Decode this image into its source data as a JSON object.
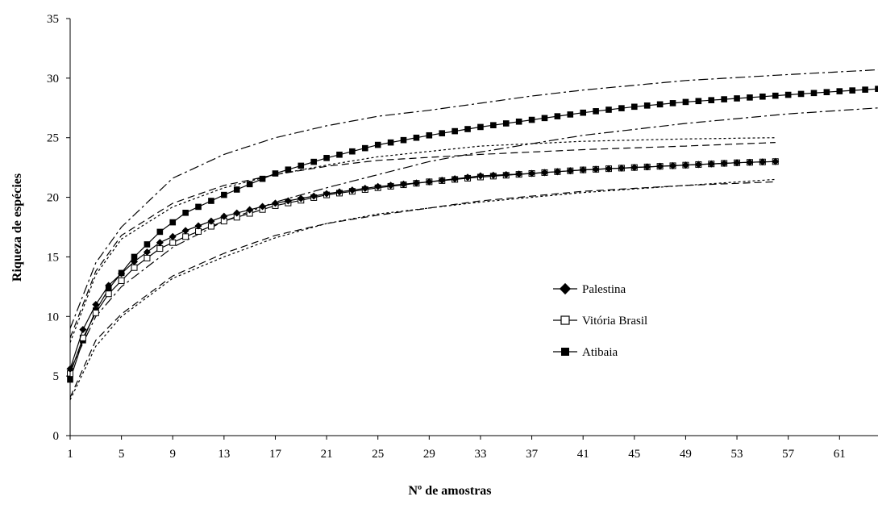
{
  "chart_data": {
    "type": "line",
    "xlabel": "Nº de amostras",
    "ylabel": "Riqueza de espécies",
    "xlim": [
      1,
      64
    ],
    "ylim": [
      0,
      35
    ],
    "x_ticks": [
      "1",
      "5",
      "9",
      "13",
      "17",
      "21",
      "25",
      "29",
      "33",
      "37",
      "41",
      "45",
      "49",
      "53",
      "57",
      "61"
    ],
    "y_ticks": [
      "0",
      "5",
      "10",
      "15",
      "20",
      "25",
      "30",
      "35"
    ],
    "grid": false,
    "legend_position": "right",
    "series": [
      {
        "name": "Palestina",
        "marker": "filled-diamond",
        "color": "#000000",
        "n": 56,
        "points": [
          [
            1,
            5.6
          ],
          [
            2,
            8.9
          ],
          [
            3,
            11.0
          ],
          [
            4,
            12.6
          ],
          [
            6,
            14.6
          ],
          [
            8,
            16.2
          ],
          [
            10,
            17.2
          ],
          [
            13,
            18.4
          ],
          [
            17,
            19.5
          ],
          [
            21,
            20.3
          ],
          [
            25,
            20.9
          ],
          [
            29,
            21.3
          ],
          [
            33,
            21.8
          ],
          [
            37,
            22.0
          ],
          [
            41,
            22.3
          ],
          [
            45,
            22.5
          ],
          [
            49,
            22.7
          ],
          [
            53,
            22.9
          ],
          [
            56,
            23.0
          ]
        ],
        "ci_upper": [
          [
            1,
            8.2
          ],
          [
            3,
            13.8
          ],
          [
            5,
            16.8
          ],
          [
            9,
            19.5
          ],
          [
            13,
            21.0
          ],
          [
            17,
            21.9
          ],
          [
            21,
            22.6
          ],
          [
            25,
            23.1
          ],
          [
            33,
            23.6
          ],
          [
            41,
            24.0
          ],
          [
            49,
            24.3
          ],
          [
            56,
            24.6
          ]
        ],
        "ci_lower": [
          [
            1,
            3.2
          ],
          [
            3,
            8.0
          ],
          [
            5,
            10.2
          ],
          [
            9,
            13.4
          ],
          [
            13,
            15.3
          ],
          [
            17,
            16.8
          ],
          [
            21,
            17.8
          ],
          [
            25,
            18.5
          ],
          [
            33,
            19.7
          ],
          [
            41,
            20.5
          ],
          [
            49,
            21.0
          ],
          [
            56,
            21.3
          ]
        ]
      },
      {
        "name": "Vitória Brasil",
        "marker": "open-square",
        "color": "#000000",
        "n": 56,
        "points": [
          [
            1,
            5.2
          ],
          [
            2,
            8.2
          ],
          [
            3,
            10.3
          ],
          [
            4,
            11.9
          ],
          [
            6,
            14.1
          ],
          [
            8,
            15.7
          ],
          [
            10,
            16.7
          ],
          [
            13,
            18.0
          ],
          [
            17,
            19.3
          ],
          [
            21,
            20.2
          ],
          [
            25,
            20.8
          ],
          [
            29,
            21.3
          ],
          [
            33,
            21.7
          ],
          [
            37,
            22.0
          ],
          [
            41,
            22.3
          ],
          [
            45,
            22.5
          ],
          [
            49,
            22.7
          ],
          [
            53,
            22.9
          ],
          [
            56,
            23.0
          ]
        ],
        "ci_upper": [
          [
            1,
            7.8
          ],
          [
            3,
            13.5
          ],
          [
            5,
            16.5
          ],
          [
            9,
            19.2
          ],
          [
            13,
            20.8
          ],
          [
            17,
            21.9
          ],
          [
            21,
            22.7
          ],
          [
            25,
            23.4
          ],
          [
            33,
            24.3
          ],
          [
            41,
            24.7
          ],
          [
            49,
            24.9
          ],
          [
            56,
            25.0
          ]
        ],
        "ci_lower": [
          [
            1,
            3.0
          ],
          [
            3,
            7.5
          ],
          [
            5,
            10.0
          ],
          [
            9,
            13.2
          ],
          [
            13,
            15.0
          ],
          [
            17,
            16.6
          ],
          [
            21,
            17.8
          ],
          [
            25,
            18.6
          ],
          [
            33,
            19.6
          ],
          [
            41,
            20.4
          ],
          [
            49,
            21.0
          ],
          [
            56,
            21.5
          ]
        ]
      },
      {
        "name": "Atibaia",
        "marker": "filled-square",
        "color": "#000000",
        "n": 64,
        "points": [
          [
            1,
            4.7
          ],
          [
            2,
            8.0
          ],
          [
            3,
            10.5
          ],
          [
            4,
            12.3
          ],
          [
            6,
            15.0
          ],
          [
            8,
            17.1
          ],
          [
            10,
            18.7
          ],
          [
            13,
            20.2
          ],
          [
            17,
            22.0
          ],
          [
            21,
            23.3
          ],
          [
            25,
            24.4
          ],
          [
            29,
            25.2
          ],
          [
            33,
            25.9
          ],
          [
            37,
            26.5
          ],
          [
            41,
            27.1
          ],
          [
            45,
            27.6
          ],
          [
            49,
            28.0
          ],
          [
            53,
            28.3
          ],
          [
            57,
            28.6
          ],
          [
            61,
            28.9
          ],
          [
            64,
            29.1
          ]
        ],
        "ci_upper": [
          [
            1,
            9.0
          ],
          [
            3,
            14.5
          ],
          [
            5,
            17.5
          ],
          [
            9,
            21.6
          ],
          [
            13,
            23.6
          ],
          [
            17,
            25.0
          ],
          [
            21,
            26.0
          ],
          [
            25,
            26.8
          ],
          [
            29,
            27.3
          ],
          [
            33,
            27.9
          ],
          [
            37,
            28.5
          ],
          [
            41,
            29.0
          ],
          [
            49,
            29.8
          ],
          [
            57,
            30.3
          ],
          [
            64,
            30.7
          ]
        ],
        "ci_lower": [
          [
            1,
            5.5
          ],
          [
            3,
            10.0
          ],
          [
            5,
            12.5
          ],
          [
            9,
            15.8
          ],
          [
            13,
            18.0
          ],
          [
            17,
            19.6
          ],
          [
            21,
            20.8
          ],
          [
            25,
            21.9
          ],
          [
            29,
            23.0
          ],
          [
            33,
            23.8
          ],
          [
            37,
            24.5
          ],
          [
            41,
            25.2
          ],
          [
            49,
            26.2
          ],
          [
            57,
            27.0
          ],
          [
            64,
            27.5
          ]
        ]
      }
    ]
  }
}
